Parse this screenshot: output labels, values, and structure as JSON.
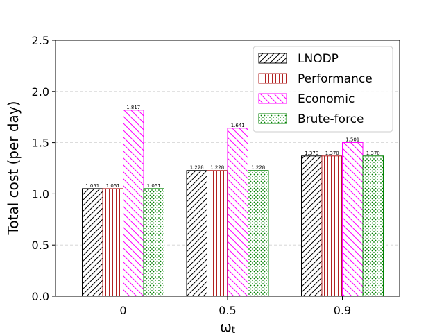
{
  "chart_data": {
    "type": "bar",
    "categories": [
      "0",
      "0.5",
      "0.9"
    ],
    "xlabel": "ω",
    "xlabel_sub": "t",
    "ylabel": "Total cost (per day)",
    "ylim": [
      0,
      2.5
    ],
    "yticks": [
      "0.0",
      "0.5",
      "1.0",
      "1.5",
      "2.0",
      "2.5"
    ],
    "ytick_values": [
      0,
      0.5,
      1.0,
      1.5,
      2.0,
      2.5
    ],
    "grid": "horizontal dashed",
    "legend_position": "top-right",
    "series": [
      {
        "name": "LNODP",
        "values": [
          1.051,
          1.228,
          1.37
        ],
        "labels": [
          "1.051",
          "1.228",
          "1.370"
        ],
        "color": "#000000",
        "hatch": "diagonal-forward"
      },
      {
        "name": "Performance",
        "values": [
          1.051,
          1.228,
          1.37
        ],
        "labels": [
          "1.051",
          "1.228",
          "1.370"
        ],
        "color": "#b22222",
        "hatch": "vertical"
      },
      {
        "name": "Economic",
        "values": [
          1.817,
          1.641,
          1.501
        ],
        "labels": [
          "1.817",
          "1.641",
          "1.501"
        ],
        "color": "#ff00ff",
        "hatch": "diagonal-back"
      },
      {
        "name": "Brute-force",
        "values": [
          1.051,
          1.228,
          1.37
        ],
        "labels": [
          "1.051",
          "1.228",
          "1.370"
        ],
        "color": "#008000",
        "hatch": "dots"
      }
    ]
  }
}
